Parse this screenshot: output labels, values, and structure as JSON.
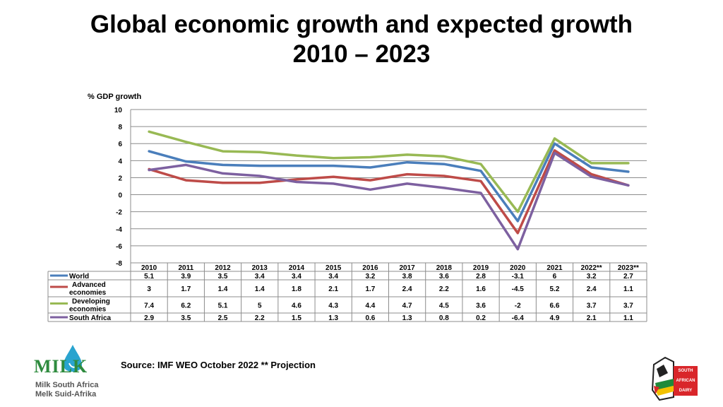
{
  "title": {
    "line1": "Global economic growth and expected growth",
    "line2": "2010 – 2023"
  },
  "source": "Source: IMF WEO October 2022  ** Projection",
  "logo_left": {
    "brand": "MILK",
    "line1": "Milk South Africa",
    "line2": "Melk Suid-Afrika"
  },
  "logo_right": {
    "line1": "SOUTH",
    "line2": "AFRICAN",
    "line3": "DAIRY"
  },
  "chart_data": {
    "type": "line",
    "ylabel": "% GDP growth",
    "ylim": [
      -8,
      10
    ],
    "yticks": [
      10,
      8,
      6,
      4,
      2,
      0,
      -2,
      -4,
      -6,
      -8
    ],
    "grid": true,
    "categories": [
      "2010",
      "2011",
      "2012",
      "2013",
      "2014",
      "2015",
      "2016",
      "2017",
      "2018",
      "2019",
      "2020",
      "2021",
      "2022**",
      "2023**"
    ],
    "series": [
      {
        "name": "World",
        "label_lines": [
          "World"
        ],
        "color": "#4a7ebb",
        "values": [
          5.1,
          3.9,
          3.5,
          3.4,
          3.4,
          3.4,
          3.2,
          3.8,
          3.6,
          2.8,
          -3.1,
          6,
          3.2,
          2.7
        ]
      },
      {
        "name": "Advanced economies",
        "label_lines": [
          "Advanced",
          "economies"
        ],
        "color": "#be4b48",
        "values": [
          3,
          1.7,
          1.4,
          1.4,
          1.8,
          2.1,
          1.7,
          2.4,
          2.2,
          1.6,
          -4.5,
          5.2,
          2.4,
          1.1
        ]
      },
      {
        "name": "Developing economies",
        "label_lines": [
          "Developing",
          "economies"
        ],
        "color": "#98b954",
        "values": [
          7.4,
          6.2,
          5.1,
          5,
          4.6,
          4.3,
          4.4,
          4.7,
          4.5,
          3.6,
          -2,
          6.6,
          3.7,
          3.7
        ]
      },
      {
        "name": "South Africa",
        "label_lines": [
          "South Africa"
        ],
        "color": "#7d60a0",
        "values": [
          2.9,
          3.5,
          2.5,
          2.2,
          1.5,
          1.3,
          0.6,
          1.3,
          0.8,
          0.2,
          -6.4,
          4.9,
          2.1,
          1.1
        ]
      }
    ]
  }
}
